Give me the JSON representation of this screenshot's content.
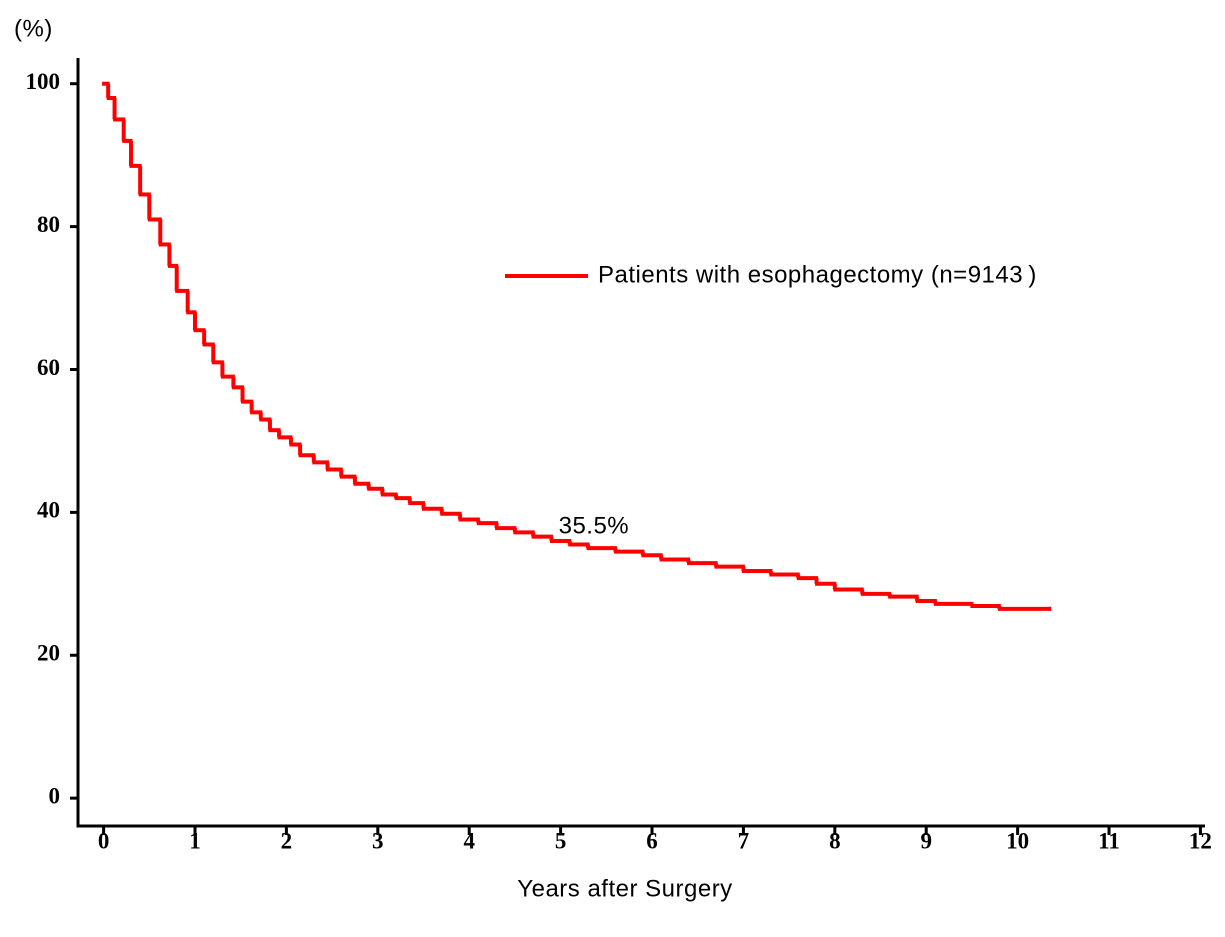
{
  "chart_data": {
    "type": "step",
    "y_label": "(%)",
    "x_label": "Years after Surgery",
    "annotation": {
      "text": "35.5%",
      "x": 5,
      "y": 38.5
    },
    "xlim": [
      -0.28,
      12.05
    ],
    "ylim": [
      -3.9,
      103.6
    ],
    "xticks": [
      0,
      1,
      2,
      3,
      4,
      5,
      6,
      7,
      8,
      9,
      10,
      11,
      12
    ],
    "yticks": [
      0,
      20,
      40,
      60,
      80,
      100
    ],
    "legend": "upper right",
    "series": [
      {
        "name": "Patients with esophagectomy (n=9143 )",
        "color": "#ff0000",
        "x": [
          0,
          0.05,
          0.12,
          0.22,
          0.3,
          0.4,
          0.5,
          0.62,
          0.72,
          0.8,
          0.92,
          1.0,
          1.1,
          1.2,
          1.3,
          1.42,
          1.52,
          1.62,
          1.72,
          1.82,
          1.92,
          2.05,
          2.15,
          2.3,
          2.45,
          2.6,
          2.75,
          2.9,
          3.05,
          3.2,
          3.35,
          3.5,
          3.7,
          3.9,
          4.1,
          4.3,
          4.5,
          4.7,
          4.9,
          5.1,
          5.3,
          5.6,
          5.9,
          6.1,
          6.4,
          6.7,
          7.0,
          7.3,
          7.6,
          7.8,
          8.0,
          8.3,
          8.6,
          8.9,
          9.1,
          9.5,
          9.8,
          10.35
        ],
        "values": [
          100,
          98,
          95,
          92,
          88.5,
          84.5,
          81,
          77.5,
          74.5,
          71,
          68,
          65.5,
          63.5,
          61,
          59,
          57.5,
          55.5,
          54,
          53,
          51.5,
          50.5,
          49.5,
          48,
          47,
          46,
          45,
          44,
          43.3,
          42.5,
          42,
          41.3,
          40.5,
          39.8,
          39,
          38.5,
          37.8,
          37.2,
          36.6,
          36,
          35.5,
          35,
          34.5,
          34,
          33.4,
          32.9,
          32.4,
          31.8,
          31.3,
          30.8,
          30,
          29.2,
          28.6,
          28.2,
          27.6,
          27.2,
          26.9,
          26.5,
          26.5
        ]
      }
    ]
  }
}
